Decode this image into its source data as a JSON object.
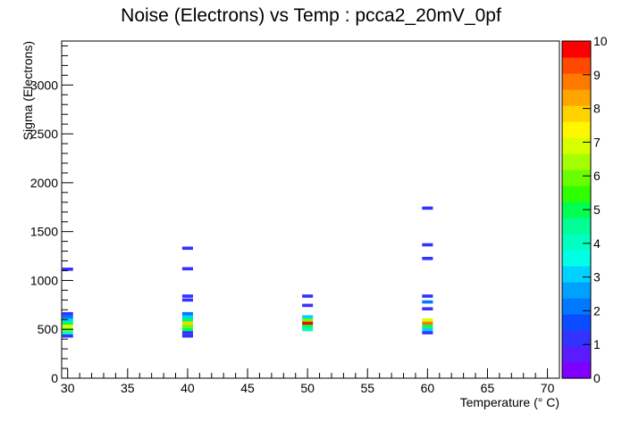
{
  "chart_data": {
    "type": "heatmap",
    "title": "Noise (Electrons) vs Temp : pcca2_20mV_0pf",
    "xlabel": "Temperature (° C)",
    "ylabel": "Sigma (Electrons)",
    "xlim": [
      29.5,
      71
    ],
    "ylim": [
      0,
      3450
    ],
    "x_ticks": [
      30,
      35,
      40,
      45,
      50,
      55,
      60,
      65,
      70
    ],
    "y_ticks": [
      0,
      500,
      1000,
      1500,
      2000,
      2500,
      3000
    ],
    "colorbar": {
      "min": 0,
      "max": 10,
      "ticks": [
        0,
        1,
        2,
        3,
        4,
        5,
        6,
        7,
        8,
        9,
        10
      ],
      "palette": [
        "#7f00ff",
        "#5a1cff",
        "#3333ff",
        "#0a4cff",
        "#0078ff",
        "#00a0ff",
        "#00d2ff",
        "#00ffe6",
        "#00ffc0",
        "#00ff96",
        "#00ff50",
        "#30ff00",
        "#6aff00",
        "#a6ff00",
        "#d8ff00",
        "#fff600",
        "#ffd200",
        "#ffa500",
        "#ff7800",
        "#ff4800",
        "#ff0000"
      ]
    },
    "cell_width": 0.9,
    "cell_height": 33,
    "cells": [
      {
        "x": 30,
        "y": 1115,
        "count": 1
      },
      {
        "x": 30,
        "y": 660,
        "count": 1
      },
      {
        "x": 30,
        "y": 628,
        "count": 2
      },
      {
        "x": 30,
        "y": 595,
        "count": 3
      },
      {
        "x": 30,
        "y": 562,
        "count": 5
      },
      {
        "x": 30,
        "y": 530,
        "count": 7
      },
      {
        "x": 30,
        "y": 497,
        "count": 6
      },
      {
        "x": 30,
        "y": 465,
        "count": 4
      },
      {
        "x": 30,
        "y": 432,
        "count": 1
      },
      {
        "x": 40,
        "y": 1330,
        "count": 1
      },
      {
        "x": 40,
        "y": 1120,
        "count": 1
      },
      {
        "x": 40,
        "y": 840,
        "count": 1
      },
      {
        "x": 40,
        "y": 800,
        "count": 1
      },
      {
        "x": 40,
        "y": 660,
        "count": 2
      },
      {
        "x": 40,
        "y": 628,
        "count": 3
      },
      {
        "x": 40,
        "y": 595,
        "count": 5
      },
      {
        "x": 40,
        "y": 562,
        "count": 8
      },
      {
        "x": 40,
        "y": 530,
        "count": 6
      },
      {
        "x": 40,
        "y": 497,
        "count": 5
      },
      {
        "x": 40,
        "y": 465,
        "count": 1
      },
      {
        "x": 40,
        "y": 432,
        "count": 1
      },
      {
        "x": 50,
        "y": 840,
        "count": 1
      },
      {
        "x": 50,
        "y": 745,
        "count": 1
      },
      {
        "x": 50,
        "y": 628,
        "count": 3
      },
      {
        "x": 50,
        "y": 595,
        "count": 6
      },
      {
        "x": 50,
        "y": 562,
        "count": 10
      },
      {
        "x": 50,
        "y": 530,
        "count": 5
      },
      {
        "x": 50,
        "y": 497,
        "count": 4
      },
      {
        "x": 60,
        "y": 1740,
        "count": 1
      },
      {
        "x": 60,
        "y": 1365,
        "count": 1
      },
      {
        "x": 60,
        "y": 1225,
        "count": 1
      },
      {
        "x": 60,
        "y": 840,
        "count": 1
      },
      {
        "x": 60,
        "y": 780,
        "count": 2
      },
      {
        "x": 60,
        "y": 710,
        "count": 1
      },
      {
        "x": 60,
        "y": 595,
        "count": 7
      },
      {
        "x": 60,
        "y": 562,
        "count": 9
      },
      {
        "x": 60,
        "y": 530,
        "count": 5
      },
      {
        "x": 60,
        "y": 497,
        "count": 3
      },
      {
        "x": 60,
        "y": 465,
        "count": 1
      }
    ]
  }
}
